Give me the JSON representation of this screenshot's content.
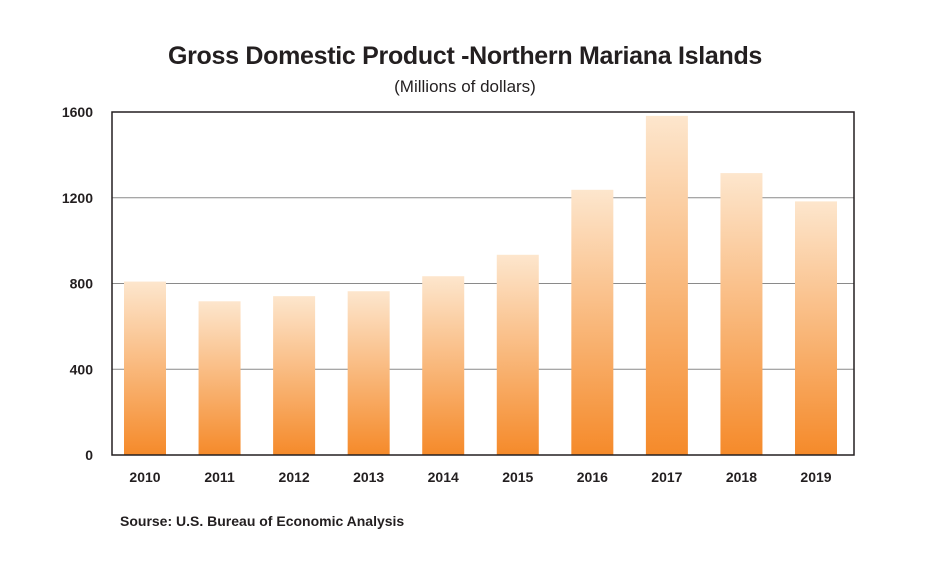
{
  "chart_data": {
    "type": "bar",
    "title": "Gross Domestic Product -Northern Mariana Islands",
    "subtitle": "(Millions of dollars)",
    "categories": [
      "2010",
      "2011",
      "2012",
      "2013",
      "2014",
      "2015",
      "2016",
      "2017",
      "2018",
      "2019"
    ],
    "values": [
      809,
      717,
      741,
      764,
      834,
      934,
      1237,
      1582,
      1315,
      1183
    ],
    "ylim": [
      0,
      1600
    ],
    "yticks": [
      "0",
      "400",
      "800",
      "1200",
      "1600"
    ],
    "grid": true,
    "bar_gradient": {
      "top": "#fde6cd",
      "bottom": "#f58a2a"
    },
    "source": "Sourse: U.S. Bureau of Economic Analysis"
  }
}
